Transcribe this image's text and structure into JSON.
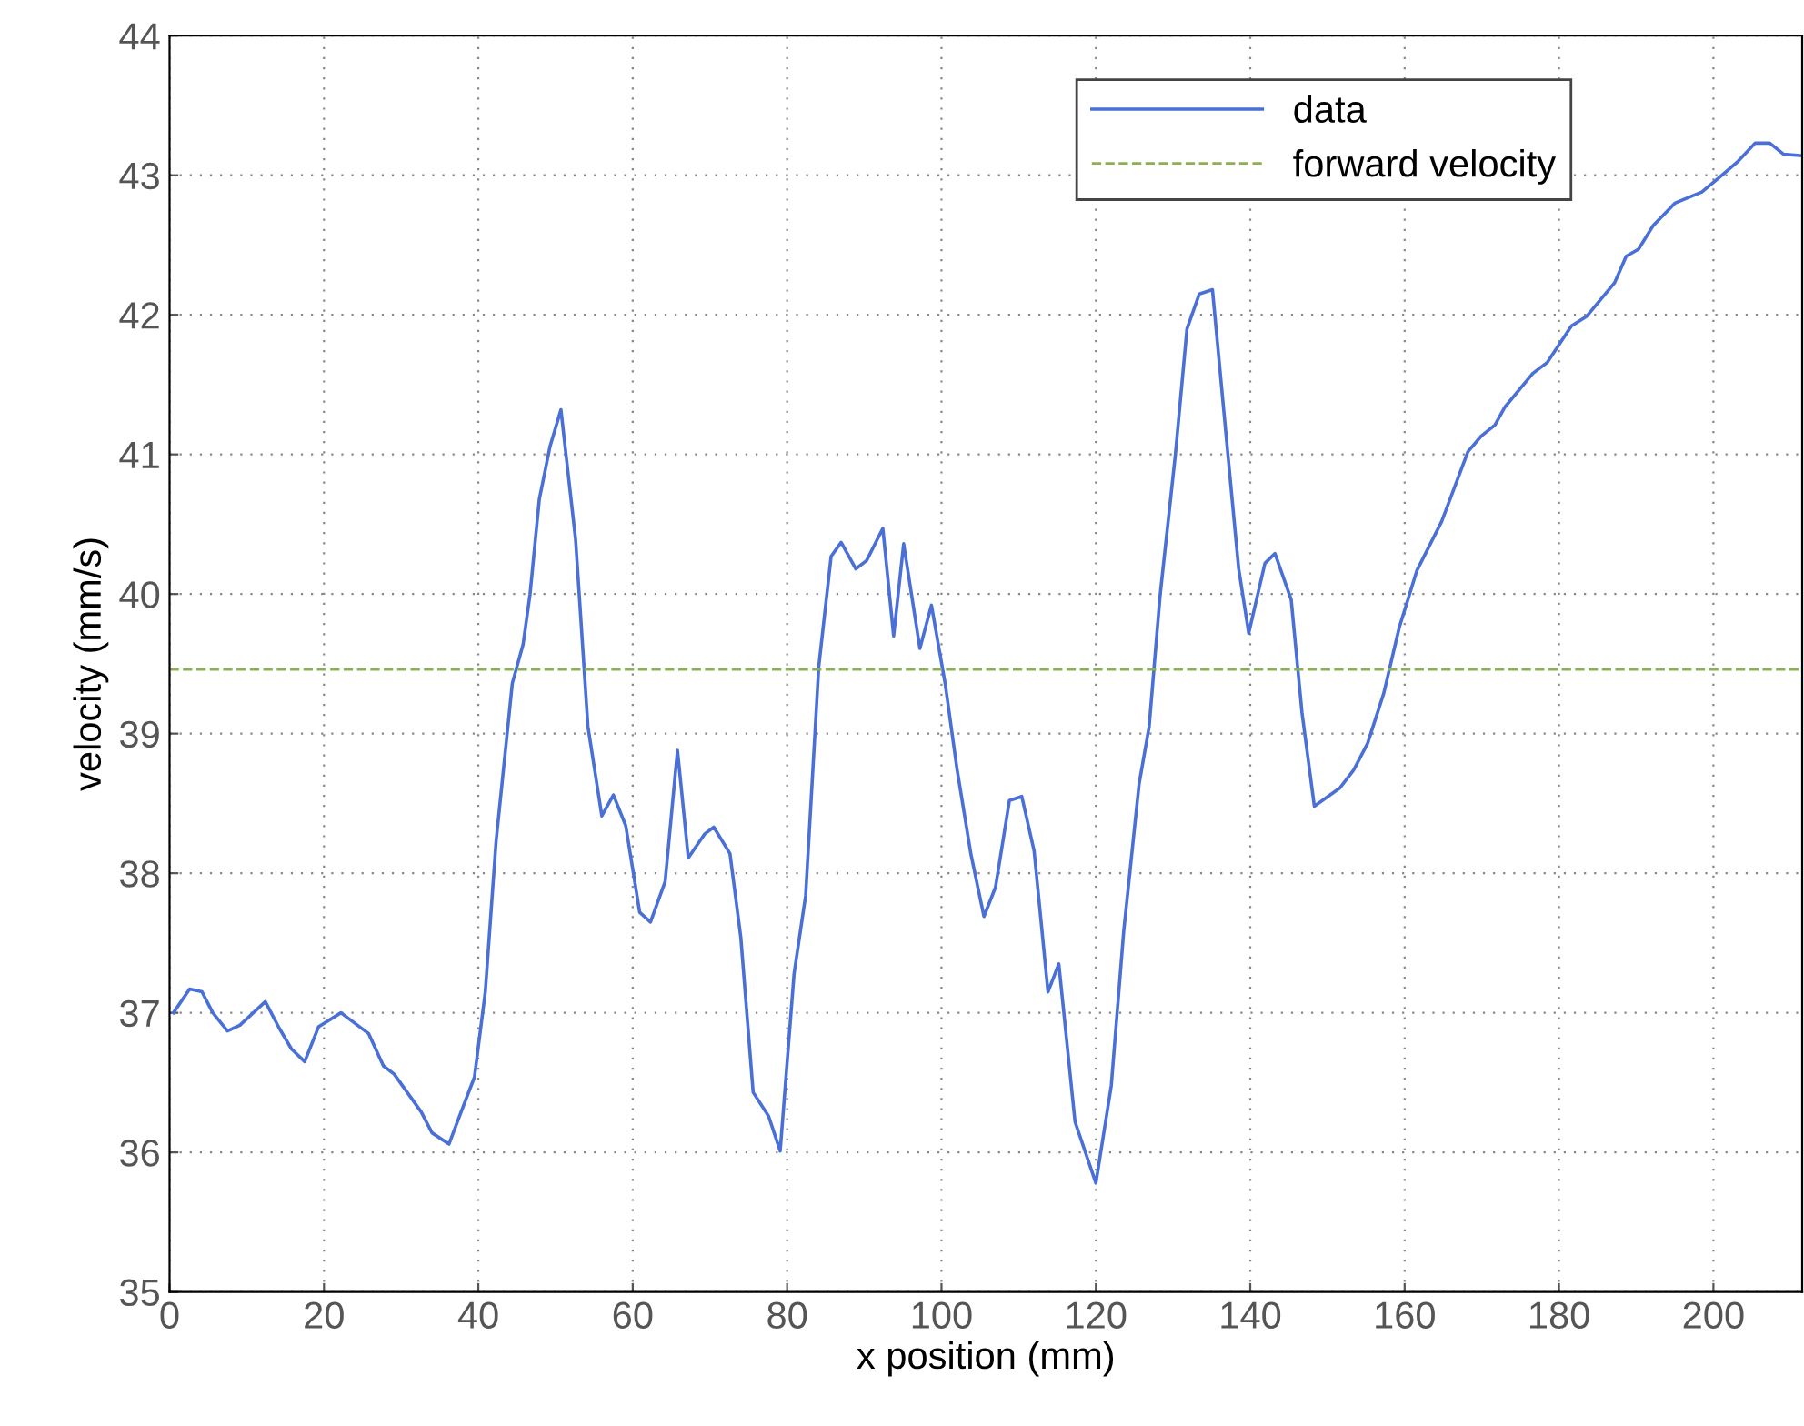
{
  "chart_data": {
    "type": "line",
    "xlabel": "x position (mm)",
    "ylabel": "velocity (mm/s)",
    "x": [
      0.5,
      2.6,
      4.2,
      5.6,
      7.5,
      9.1,
      12.4,
      14.2,
      15.8,
      17.5,
      19.3,
      22.2,
      25.8,
      27.7,
      29.1,
      32.6,
      34.0,
      36.2,
      37.7,
      39.5,
      40.9,
      42.3,
      44.4,
      45.8,
      46.7,
      47.9,
      49.3,
      50.7,
      52.6,
      54.2,
      56.0,
      57.5,
      59.1,
      60.9,
      62.3,
      64.2,
      65.8,
      67.2,
      69.3,
      70.5,
      72.6,
      74.0,
      75.6,
      77.6,
      79.1,
      80.9,
      82.4,
      84.1,
      85.7,
      87.0,
      88.9,
      90.3,
      92.4,
      93.8,
      95.1,
      97.2,
      98.7,
      100.5,
      102.0,
      103.8,
      105.5,
      107.0,
      108.8,
      110.4,
      112.0,
      113.8,
      115.2,
      117.3,
      120.0,
      122.0,
      123.6,
      125.6,
      126.9,
      128.3,
      130.3,
      131.8,
      133.4,
      135.1,
      137.1,
      138.5,
      139.8,
      141.9,
      143.2,
      145.3,
      146.7,
      148.3,
      151.6,
      153.4,
      155.2,
      157.3,
      159.3,
      161.6,
      164.8,
      168.2,
      169.9,
      171.7,
      173.0,
      176.6,
      178.5,
      181.6,
      183.6,
      187.2,
      188.7,
      190.3,
      192.2,
      195.0,
      198.5,
      200.9,
      203.2,
      205.4,
      207.3,
      209.1,
      211.5
    ],
    "series": [
      {
        "name": "data",
        "color": "#4a70d8",
        "values": [
          37.0,
          37.17,
          37.15,
          37.0,
          36.87,
          36.91,
          37.08,
          36.89,
          36.74,
          36.65,
          36.9,
          37.0,
          36.85,
          36.62,
          36.56,
          36.29,
          36.14,
          36.06,
          36.28,
          36.54,
          37.15,
          38.23,
          39.36,
          39.64,
          40.0,
          40.68,
          41.06,
          41.32,
          40.39,
          39.05,
          38.41,
          38.56,
          38.34,
          37.72,
          37.65,
          37.94,
          38.88,
          38.11,
          38.28,
          38.33,
          38.14,
          37.54,
          36.43,
          36.26,
          36.01,
          37.28,
          37.84,
          39.48,
          40.27,
          40.37,
          40.18,
          40.24,
          40.47,
          39.7,
          40.36,
          39.61,
          39.92,
          39.35,
          38.75,
          38.14,
          37.69,
          37.9,
          38.52,
          38.55,
          38.16,
          37.15,
          37.35,
          36.22,
          35.78,
          36.48,
          37.58,
          38.64,
          39.05,
          39.98,
          41.0,
          41.9,
          42.15,
          42.18,
          41.0,
          40.18,
          39.72,
          40.22,
          40.29,
          39.96,
          39.15,
          38.48,
          38.61,
          38.74,
          38.93,
          39.29,
          39.76,
          40.17,
          40.52,
          41.02,
          41.13,
          41.21,
          41.34,
          41.58,
          41.66,
          41.92,
          41.99,
          42.23,
          42.42,
          42.47,
          42.64,
          42.8,
          42.88,
          42.99,
          43.1,
          43.23,
          43.23,
          43.15,
          43.14
        ]
      }
    ],
    "ref_lines": [
      {
        "axis": "y",
        "value": 39.46,
        "label": "forward velocity",
        "color": "#8cb050",
        "line_style": "dashed"
      }
    ],
    "xlim": [
      0,
      211.5
    ],
    "xticks": [
      0,
      20,
      40,
      60,
      80,
      100,
      120,
      140,
      160,
      180,
      200
    ],
    "ylim": [
      35,
      44
    ],
    "yticks": [
      35,
      36,
      37,
      38,
      39,
      40,
      41,
      42,
      43,
      44
    ],
    "grid": true,
    "legend": "top right",
    "line_style": "solid",
    "marker": "none"
  }
}
